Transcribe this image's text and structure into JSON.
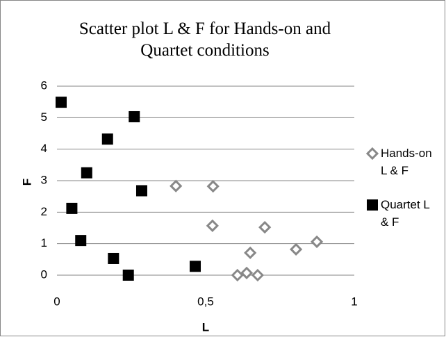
{
  "chart_data": {
    "type": "scatter",
    "title": "Scatter plot L & F for Hands-on and Quartet conditions",
    "x_label": "L",
    "y_label": "F",
    "xlim": [
      0,
      1
    ],
    "xticks": [
      0,
      {
        "value": 0.5,
        "label": "0,5"
      },
      1
    ],
    "ylim": [
      0,
      6
    ],
    "yticks": [
      0,
      1,
      2,
      3,
      4,
      5,
      6
    ],
    "grid": true,
    "legend": "right",
    "series": [
      {
        "name": "Hands-on L & F",
        "color": "#888888",
        "marker": "diamond",
        "x": [
          0.607,
          0.638,
          0.675,
          0.65,
          0.523,
          0.699,
          0.804,
          0.874,
          0.4,
          0.525
        ],
        "y": [
          0,
          0.07,
          0,
          0.71,
          1.57,
          1.52,
          0.82,
          1.06,
          2.83,
          2.82
        ]
      },
      {
        "name": "Quartet L & F",
        "color": "#000000",
        "marker": "square",
        "x": [
          0.014,
          0.26,
          0.17,
          0.1,
          0.05,
          0.08,
          0.19,
          0.24,
          0.285,
          0.465
        ],
        "y": [
          5.49,
          5.03,
          4.32,
          3.25,
          2.12,
          1.1,
          0.53,
          0,
          2.68,
          0.28
        ]
      }
    ]
  }
}
